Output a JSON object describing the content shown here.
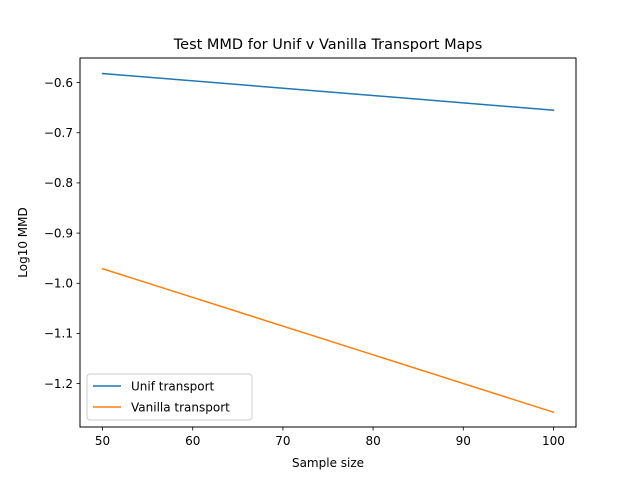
{
  "chart_data": {
    "type": "line",
    "title": "Test MMD for Unif v Vanilla Transport Maps",
    "xlabel": "Sample size",
    "ylabel": "Log10 MMD",
    "x": [
      50,
      100
    ],
    "xlim": [
      47.5,
      102.5
    ],
    "ylim": [
      -1.2865,
      -0.551
    ],
    "xticks": [
      50,
      60,
      70,
      80,
      90,
      100
    ],
    "yticks": [
      -0.6,
      -0.7,
      -0.8,
      -0.9,
      -1.0,
      -1.1,
      -1.2
    ],
    "ytick_labels": [
      "−0.6",
      "−0.7",
      "−0.8",
      "−0.9",
      "−1.0",
      "−1.1",
      "−1.2"
    ],
    "grid": false,
    "legend_position": "lower-left",
    "series": [
      {
        "name": "Unif transport",
        "color": "#1f77b4",
        "values": [
          -0.582,
          -0.655
        ]
      },
      {
        "name": "Vanilla transport",
        "color": "#ff7f0e",
        "values": [
          -0.971,
          -1.257
        ]
      }
    ]
  }
}
